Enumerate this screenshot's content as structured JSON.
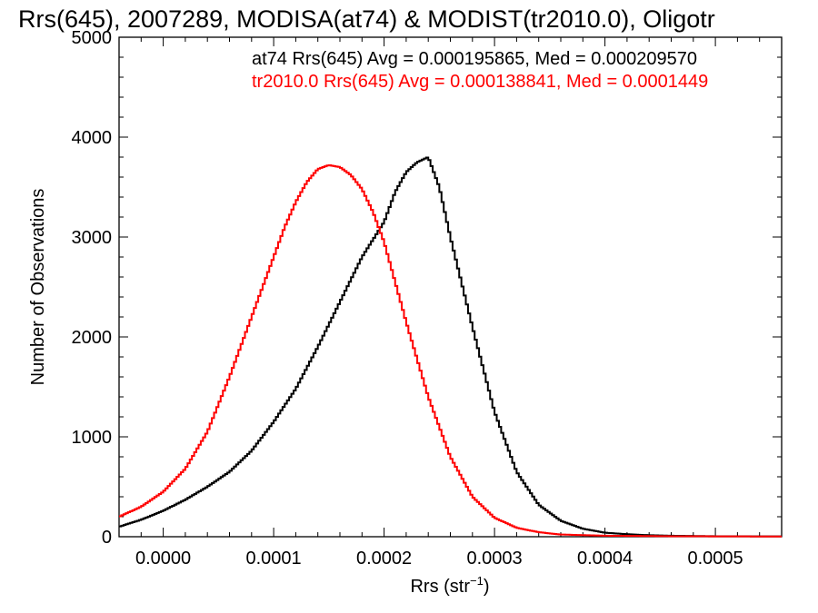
{
  "chart_data": {
    "type": "line",
    "title": "Rrs(645), 2007289, MODISA(at74) & MODIST(tr2010.0), Oligotr",
    "xlabel": "Rrs (str",
    "xlabel_sup": "−1",
    "xlabel_end": ")",
    "ylabel": "Number of Observations",
    "xlim": [
      -4e-05,
      0.00056
    ],
    "ylim": [
      0,
      5000
    ],
    "xticks": [
      0.0,
      0.0001,
      0.0002,
      0.0003,
      0.0004,
      0.0005
    ],
    "xtick_labels": [
      "0.0000",
      "0.0001",
      "0.0002",
      "0.0003",
      "0.0004",
      "0.0005"
    ],
    "yticks": [
      0,
      1000,
      2000,
      3000,
      4000,
      5000
    ],
    "ytick_labels": [
      "0",
      "1000",
      "2000",
      "3000",
      "4000",
      "5000"
    ],
    "annotations": [
      {
        "text": "at74 Rrs(645) Avg = 0.000195865, Med = 0.000209570",
        "color": "#000000"
      },
      {
        "text": "tr2010.0 Rrs(645) Avg = 0.000138841, Med = 0.0001449",
        "color": "#ff0000"
      }
    ],
    "series": [
      {
        "color": "#000000",
        "x": [
          -4e-05,
          -2e-05,
          0.0,
          2e-05,
          4e-05,
          6e-05,
          8e-05,
          0.0001,
          0.00012,
          0.00014,
          0.00016,
          0.00018,
          0.0002,
          0.00021,
          0.00022,
          0.00023,
          0.00024,
          0.00025,
          0.00026,
          0.00028,
          0.0003,
          0.00032,
          0.00034,
          0.00036,
          0.00038,
          0.0004,
          0.00042,
          0.00044,
          0.00046,
          0.0005,
          0.00056
        ],
        "y": [
          100,
          170,
          260,
          370,
          500,
          650,
          860,
          1150,
          1480,
          1900,
          2350,
          2800,
          3150,
          3450,
          3650,
          3750,
          3800,
          3500,
          3000,
          2100,
          1250,
          650,
          320,
          160,
          80,
          40,
          25,
          15,
          10,
          5,
          3
        ]
      },
      {
        "color": "#ff0000",
        "x": [
          -4e-05,
          -2e-05,
          0.0,
          2e-05,
          4e-05,
          6e-05,
          8e-05,
          0.0001,
          0.00011,
          0.00012,
          0.00013,
          0.00014,
          0.00015,
          0.00016,
          0.00017,
          0.00018,
          0.00019,
          0.0002,
          0.00022,
          0.00024,
          0.00026,
          0.00028,
          0.0003,
          0.00032,
          0.00034,
          0.00036,
          0.0004,
          0.00046,
          0.00056
        ],
        "y": [
          200,
          300,
          450,
          680,
          1050,
          1600,
          2200,
          2800,
          3100,
          3350,
          3550,
          3680,
          3720,
          3700,
          3620,
          3480,
          3250,
          2950,
          2150,
          1400,
          800,
          400,
          190,
          90,
          45,
          22,
          10,
          5,
          2
        ]
      }
    ]
  }
}
